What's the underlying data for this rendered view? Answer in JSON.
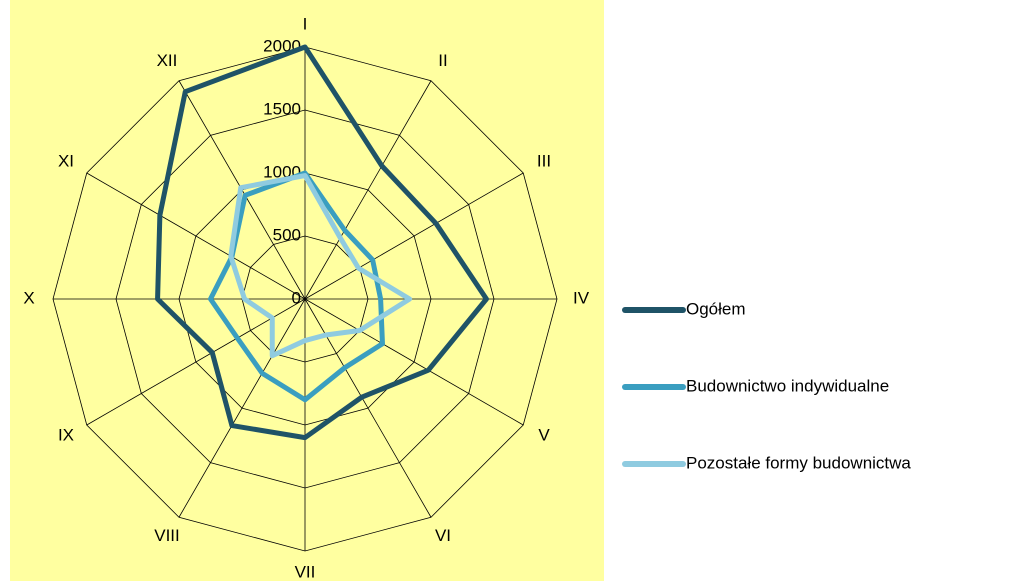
{
  "chart_data": {
    "type": "radar",
    "categories": [
      "I",
      "II",
      "III",
      "IV",
      "V",
      "VI",
      "VII",
      "VIII",
      "IX",
      "X",
      "XI",
      "XII"
    ],
    "ylim": [
      0,
      2000
    ],
    "yticks": [
      0,
      500,
      1000,
      1500,
      2000
    ],
    "grid": true,
    "legend": "right",
    "background": "#ffffa0",
    "series": [
      {
        "name": "Ogółem",
        "color": "#1f5367",
        "values": [
          2000,
          1220,
          1200,
          1440,
          1130,
          900,
          1100,
          1160,
          850,
          1170,
          1330,
          1900
        ]
      },
      {
        "name": "Budownictwo indywidualne",
        "color": "#3a9ec0",
        "values": [
          1000,
          630,
          620,
          600,
          710,
          630,
          800,
          680,
          620,
          750,
          670,
          950
        ]
      },
      {
        "name": "Pozostałe formy budownictwa",
        "color": "#8fcbe0",
        "values": [
          980,
          560,
          490,
          830,
          500,
          330,
          330,
          520,
          300,
          480,
          680,
          1020
        ]
      }
    ]
  }
}
